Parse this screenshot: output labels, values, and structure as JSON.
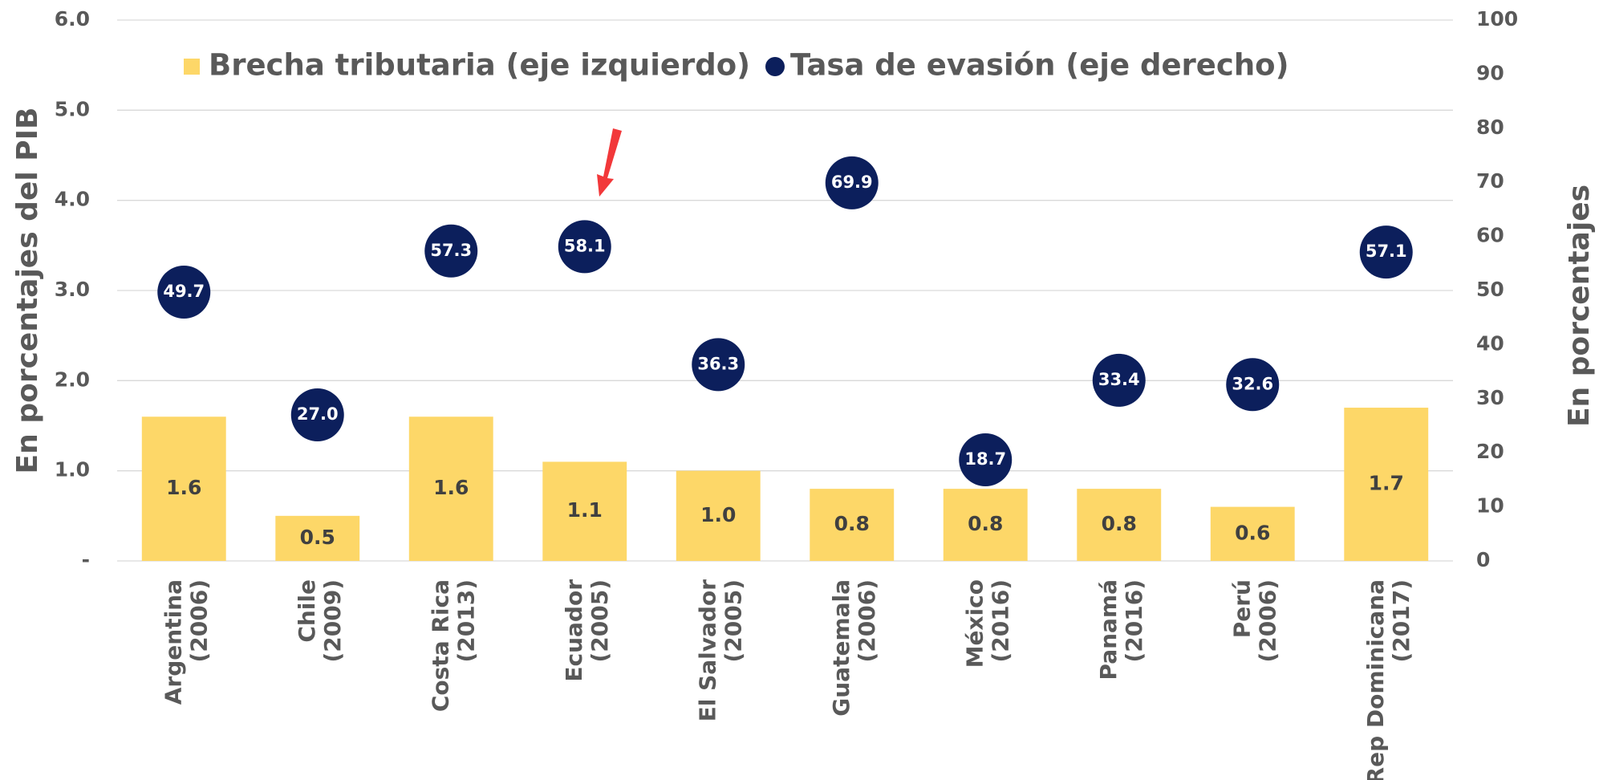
{
  "chart_data": {
    "type": "bar",
    "categories": [
      "Argentina (2006)",
      "Chile (2009)",
      "Costa Rica (2013)",
      "Ecuador (2005)",
      "El Salvador (2005)",
      "Guatemala (2006)",
      "México (2016)",
      "Panamá (2016)",
      "Perú (2006)",
      "Rep Dominicana (2017)"
    ],
    "series": [
      {
        "name": "Brecha tributaria (eje izquierdo)",
        "type": "bar",
        "color": "#fdd768",
        "values": [
          1.6,
          0.5,
          1.6,
          1.1,
          1.0,
          0.8,
          0.8,
          0.8,
          0.6,
          1.7
        ],
        "value_labels": [
          "1.6",
          "0.5",
          "1.6",
          "1.1",
          "1.0",
          "0.8",
          "0.8",
          "0.8",
          "0.6",
          "1.7"
        ]
      },
      {
        "name": "Tasa de evasión (eje derecho)",
        "type": "scatter",
        "axis": "y2",
        "color": "#0c1f5c",
        "values": [
          49.7,
          27.0,
          57.3,
          58.1,
          36.3,
          69.9,
          18.7,
          33.4,
          32.6,
          57.1
        ],
        "value_labels": [
          "49.7",
          "27.0",
          "57.3",
          "58.1",
          "36.3",
          "69.9",
          "18.7",
          "33.4",
          "32.6",
          "57.1"
        ]
      }
    ],
    "y_label": "En porcentajes del PIB",
    "y2_label": "En porcentajes",
    "ylim": [
      0,
      6
    ],
    "yticks": [
      {
        "value": 0,
        "label": "-"
      },
      {
        "value": 1,
        "label": "1.0"
      },
      {
        "value": 2,
        "label": "2.0"
      },
      {
        "value": 3,
        "label": "3.0"
      },
      {
        "value": 4,
        "label": "4.0"
      },
      {
        "value": 5,
        "label": "5.0"
      },
      {
        "value": 6,
        "label": "6.0"
      }
    ],
    "y2lim": [
      0,
      100
    ],
    "y2ticks": [
      0,
      10,
      20,
      30,
      40,
      50,
      60,
      70,
      80,
      90,
      100
    ],
    "grid": true
  }
}
